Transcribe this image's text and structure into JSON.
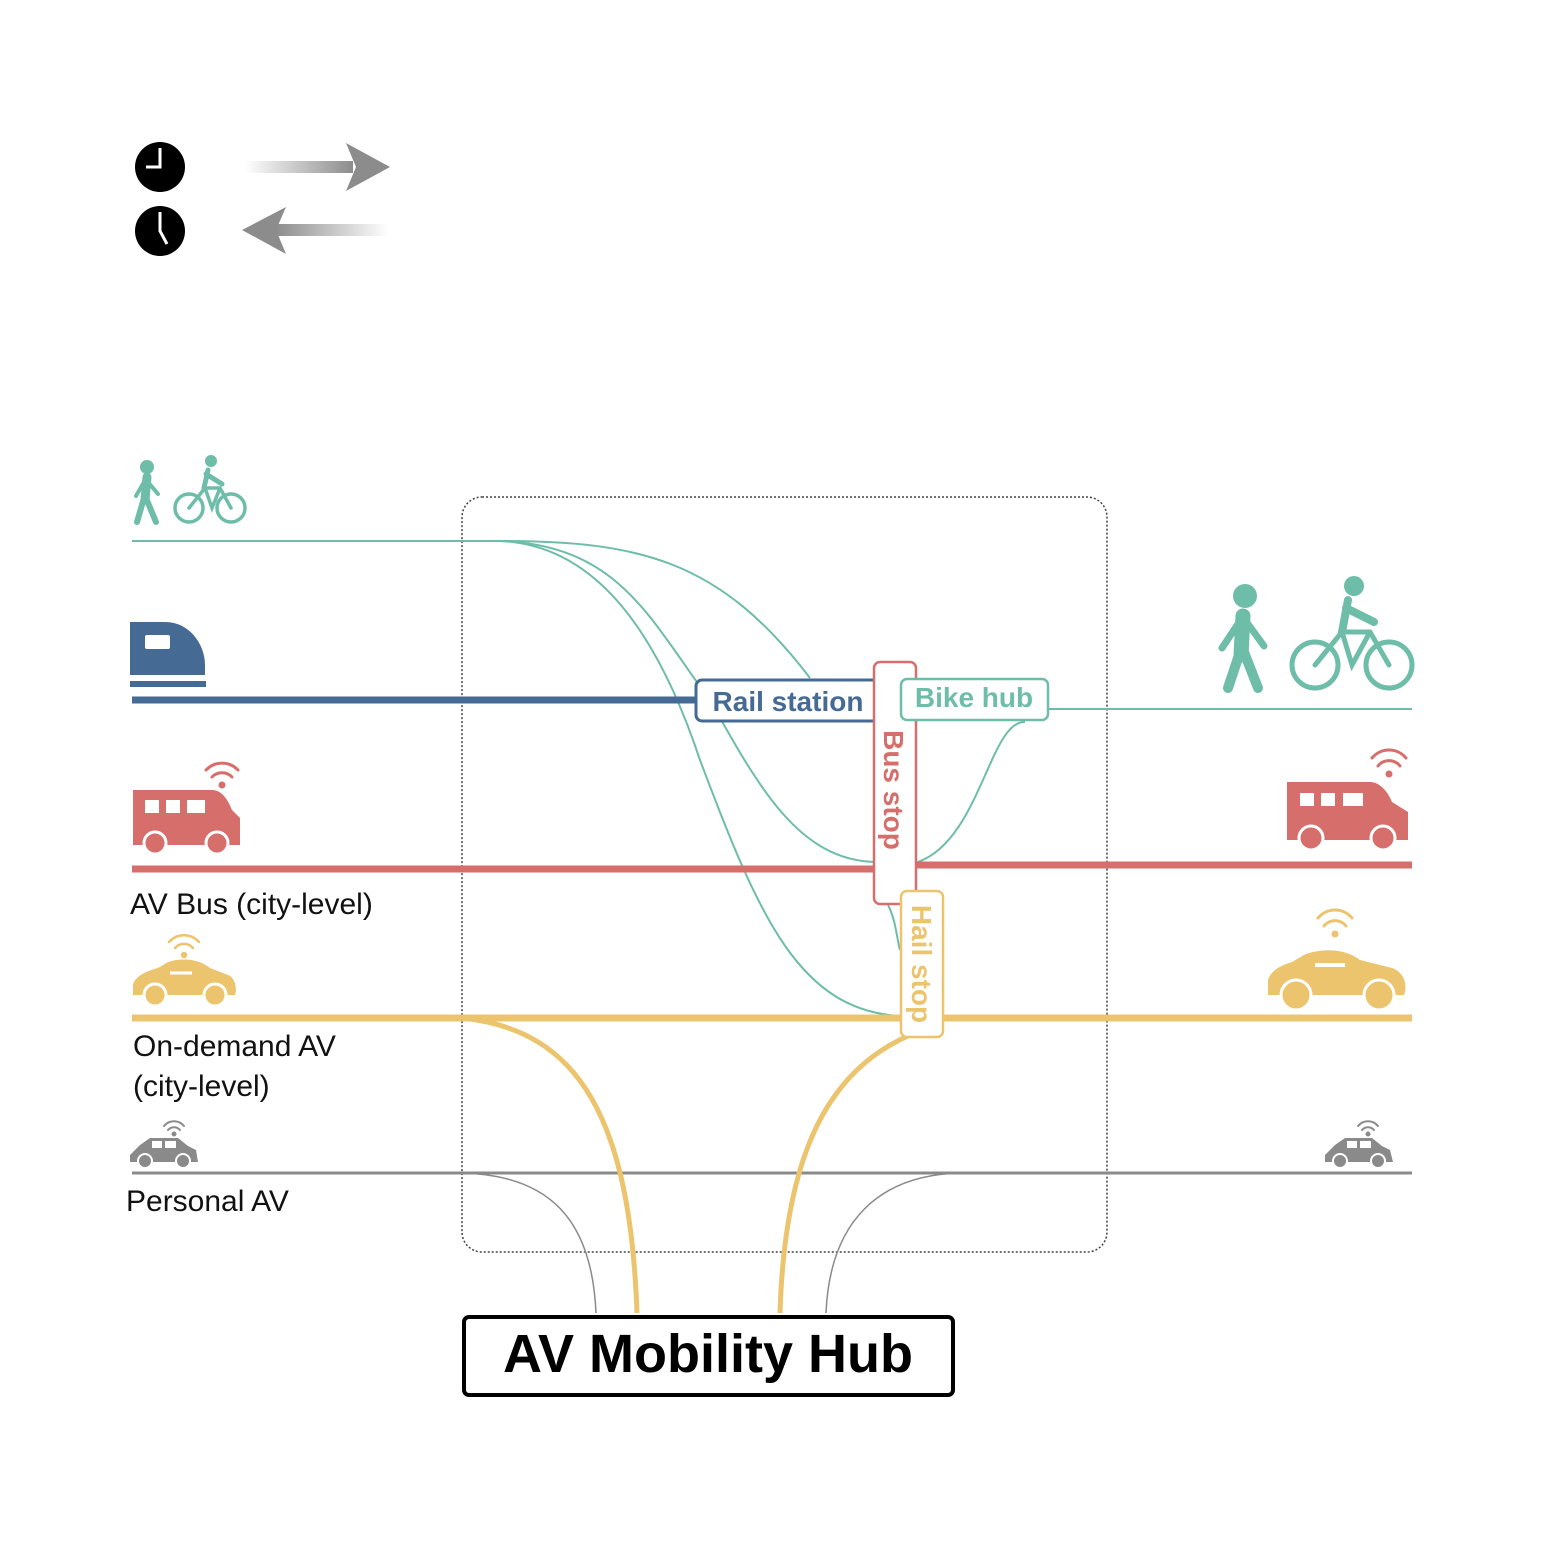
{
  "colors": {
    "active": "#6dbda9",
    "rail": "#456a94",
    "bus": "#d66e6c",
    "ondemand": "#ebc46d",
    "personal": "#8a8a8a",
    "arrow": "#8c8c8c",
    "clock": "#000000"
  },
  "legend": {
    "clock_icon": "clock-icon",
    "arrow_right_icon": "arrow-right-icon",
    "arrow_left_icon": "arrow-left-icon"
  },
  "modes": {
    "bus": {
      "label": "AV Bus (city-level)"
    },
    "ondemand": {
      "label_line1": "On-demand AV",
      "label_line2": "(city-level)"
    },
    "personal": {
      "label": "Personal AV"
    }
  },
  "stops": {
    "rail": "Rail station",
    "bike": "Bike hub",
    "bus": "Bus stop",
    "hail": "Hail stop"
  },
  "hub": {
    "title": "AV Mobility Hub"
  }
}
